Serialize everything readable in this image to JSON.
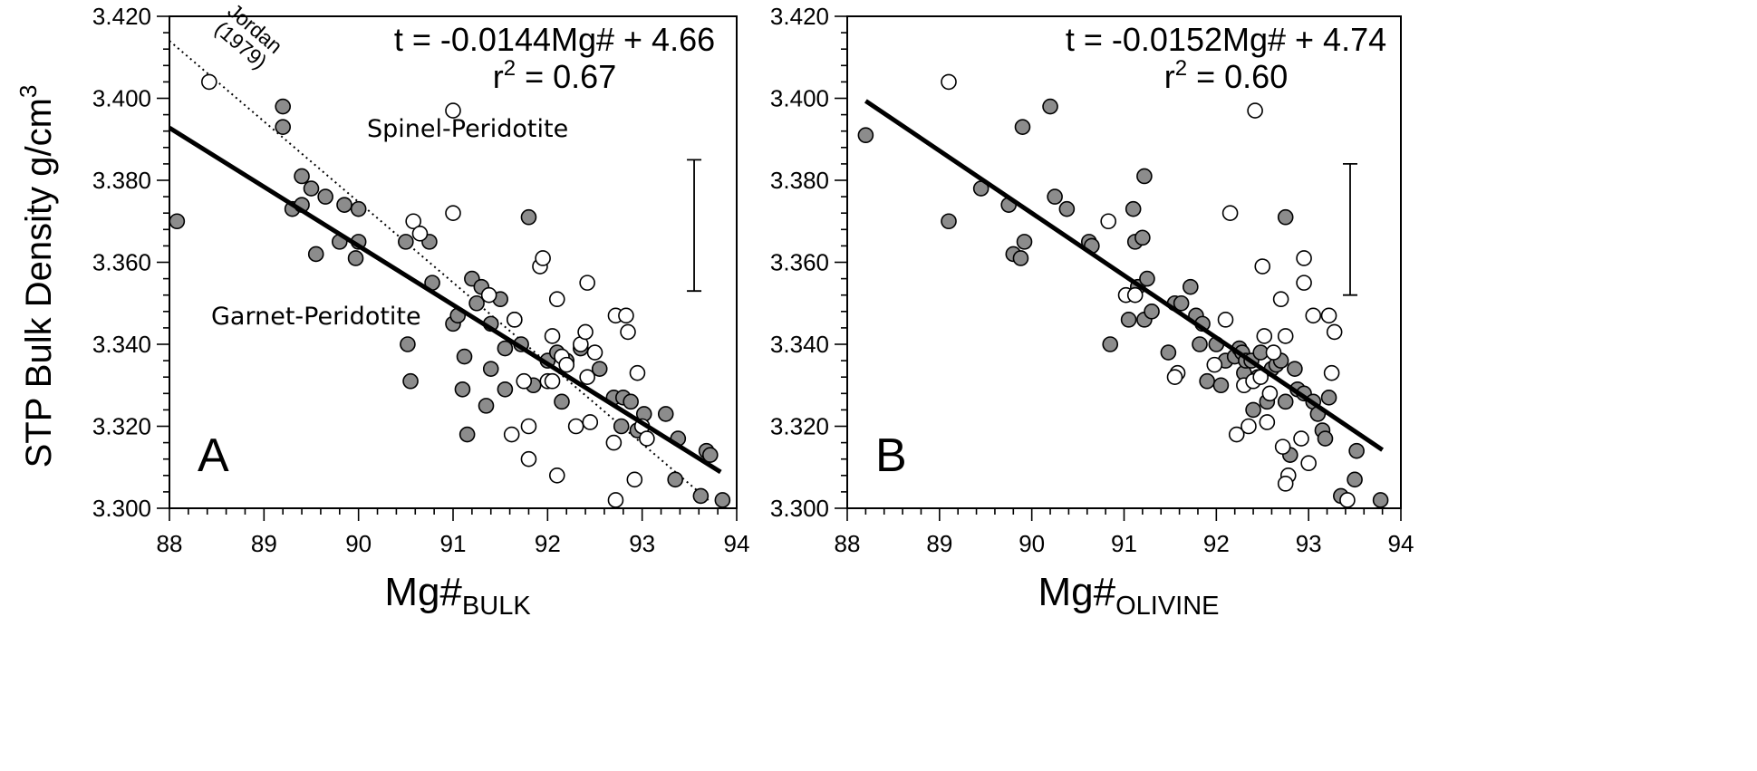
{
  "ylabel": "STP Bulk Density g/cm",
  "ylabel_sup": "3",
  "chart_data": [
    {
      "type": "scatter",
      "panel": "A",
      "xlabel": "Mg#",
      "xlabel_sub": "BULK",
      "xlim": [
        88,
        94
      ],
      "ylim": [
        3.3,
        3.42
      ],
      "x_ticks": [
        "88",
        "89",
        "90",
        "91",
        "92",
        "93",
        "94"
      ],
      "y_ticks": [
        "3.300",
        "3.320",
        "3.340",
        "3.360",
        "3.380",
        "3.400",
        "3.420"
      ],
      "equation": "t  = -0.0144Mg# + 4.66",
      "r2_prefix": "r",
      "r2_sup": "2",
      "r2_value": " = 0.67",
      "fit_line": {
        "slope": -0.0144,
        "intercept": 4.66,
        "x_range": [
          88,
          93.83
        ]
      },
      "reference_line": {
        "label_1": "Jordan",
        "label_2": "(1979)",
        "points": [
          [
            88,
            3.414
          ],
          [
            93.7,
            3.302
          ]
        ]
      },
      "annotations": [
        "Spinel-Peridotite",
        "Garnet-Peridotite"
      ],
      "error_bar": {
        "x": 93.55,
        "low": 3.353,
        "high": 3.385
      },
      "series": [
        {
          "name": "",
          "marker": "filled",
          "color": "#8c8c8c",
          "points": [
            [
              88.08,
              3.37
            ],
            [
              89.2,
              3.398
            ],
            [
              89.2,
              3.393
            ],
            [
              89.3,
              3.373
            ],
            [
              89.4,
              3.381
            ],
            [
              89.4,
              3.374
            ],
            [
              89.5,
              3.378
            ],
            [
              89.55,
              3.362
            ],
            [
              89.65,
              3.376
            ],
            [
              89.8,
              3.365
            ],
            [
              89.85,
              3.374
            ],
            [
              89.97,
              3.361
            ],
            [
              90.0,
              3.373
            ],
            [
              90.0,
              3.365
            ],
            [
              90.5,
              3.365
            ],
            [
              90.52,
              3.34
            ],
            [
              90.55,
              3.331
            ],
            [
              90.75,
              3.365
            ],
            [
              90.78,
              3.355
            ],
            [
              91.0,
              3.345
            ],
            [
              91.05,
              3.347
            ],
            [
              91.1,
              3.329
            ],
            [
              91.12,
              3.337
            ],
            [
              91.15,
              3.318
            ],
            [
              91.2,
              3.356
            ],
            [
              91.25,
              3.35
            ],
            [
              91.3,
              3.354
            ],
            [
              91.35,
              3.325
            ],
            [
              91.4,
              3.345
            ],
            [
              91.4,
              3.334
            ],
            [
              91.5,
              3.351
            ],
            [
              91.55,
              3.339
            ],
            [
              91.55,
              3.329
            ],
            [
              91.65,
              3.346
            ],
            [
              91.72,
              3.34
            ],
            [
              91.8,
              3.371
            ],
            [
              91.85,
              3.33
            ],
            [
              92.0,
              3.336
            ],
            [
              92.1,
              3.338
            ],
            [
              92.15,
              3.326
            ],
            [
              92.2,
              3.336
            ],
            [
              92.35,
              3.339
            ],
            [
              92.55,
              3.334
            ],
            [
              92.7,
              3.327
            ],
            [
              92.78,
              3.32
            ],
            [
              92.8,
              3.327
            ],
            [
              92.88,
              3.326
            ],
            [
              92.95,
              3.319
            ],
            [
              93.02,
              3.323
            ],
            [
              93.25,
              3.323
            ],
            [
              93.35,
              3.307
            ],
            [
              93.38,
              3.317
            ],
            [
              93.62,
              3.303
            ],
            [
              93.68,
              3.314
            ],
            [
              93.72,
              3.313
            ],
            [
              93.85,
              3.302
            ]
          ]
        },
        {
          "name": "",
          "marker": "open",
          "color": "#ffffff",
          "points": [
            [
              88.42,
              3.404
            ],
            [
              90.58,
              3.37
            ],
            [
              90.65,
              3.367
            ],
            [
              91.0,
              3.372
            ],
            [
              91.0,
              3.397
            ],
            [
              91.38,
              3.352
            ],
            [
              91.65,
              3.346
            ],
            [
              91.62,
              3.318
            ],
            [
              91.75,
              3.331
            ],
            [
              91.8,
              3.32
            ],
            [
              91.8,
              3.312
            ],
            [
              91.92,
              3.359
            ],
            [
              91.95,
              3.361
            ],
            [
              92.0,
              3.331
            ],
            [
              92.05,
              3.342
            ],
            [
              92.05,
              3.331
            ],
            [
              92.1,
              3.351
            ],
            [
              92.1,
              3.308
            ],
            [
              92.15,
              3.337
            ],
            [
              92.2,
              3.335
            ],
            [
              92.3,
              3.32
            ],
            [
              92.35,
              3.34
            ],
            [
              92.4,
              3.343
            ],
            [
              92.42,
              3.355
            ],
            [
              92.42,
              3.332
            ],
            [
              92.45,
              3.321
            ],
            [
              92.5,
              3.338
            ],
            [
              92.7,
              3.316
            ],
            [
              92.72,
              3.347
            ],
            [
              92.72,
              3.302
            ],
            [
              92.83,
              3.347
            ],
            [
              92.85,
              3.343
            ],
            [
              92.92,
              3.307
            ],
            [
              92.95,
              3.333
            ],
            [
              93.0,
              3.32
            ],
            [
              93.05,
              3.317
            ]
          ]
        }
      ]
    },
    {
      "type": "scatter",
      "panel": "B",
      "xlabel": "Mg#",
      "xlabel_sub": "OLIVINE",
      "xlim": [
        88,
        94
      ],
      "ylim": [
        3.3,
        3.42
      ],
      "x_ticks": [
        "88",
        "89",
        "90",
        "91",
        "92",
        "93",
        "94"
      ],
      "y_ticks": [
        "3.300",
        "3.320",
        "3.340",
        "3.360",
        "3.380",
        "3.400",
        "3.420"
      ],
      "equation": "t  = -0.0152Mg# + 4.74",
      "r2_prefix": "r",
      "r2_sup": "2",
      "r2_value": " = 0.60",
      "fit_line": {
        "slope": -0.0152,
        "intercept": 4.74,
        "x_range": [
          88.2,
          93.8
        ]
      },
      "error_bar": {
        "x": 93.45,
        "low": 3.352,
        "high": 3.384
      },
      "series": [
        {
          "name": "",
          "marker": "filled",
          "color": "#8c8c8c",
          "points": [
            [
              88.2,
              3.391
            ],
            [
              89.1,
              3.37
            ],
            [
              89.45,
              3.378
            ],
            [
              89.75,
              3.374
            ],
            [
              89.8,
              3.362
            ],
            [
              89.88,
              3.361
            ],
            [
              89.9,
              3.393
            ],
            [
              89.92,
              3.365
            ],
            [
              90.2,
              3.398
            ],
            [
              90.25,
              3.376
            ],
            [
              90.38,
              3.373
            ],
            [
              90.62,
              3.365
            ],
            [
              90.65,
              3.364
            ],
            [
              90.85,
              3.34
            ],
            [
              91.05,
              3.346
            ],
            [
              91.1,
              3.373
            ],
            [
              91.12,
              3.365
            ],
            [
              91.15,
              3.354
            ],
            [
              91.2,
              3.366
            ],
            [
              91.22,
              3.381
            ],
            [
              91.22,
              3.346
            ],
            [
              91.25,
              3.356
            ],
            [
              91.3,
              3.348
            ],
            [
              91.48,
              3.338
            ],
            [
              91.55,
              3.35
            ],
            [
              91.62,
              3.35
            ],
            [
              91.72,
              3.354
            ],
            [
              91.78,
              3.347
            ],
            [
              91.82,
              3.34
            ],
            [
              91.85,
              3.345
            ],
            [
              91.9,
              3.331
            ],
            [
              92.0,
              3.34
            ],
            [
              92.05,
              3.33
            ],
            [
              92.1,
              3.336
            ],
            [
              92.2,
              3.337
            ],
            [
              92.25,
              3.339
            ],
            [
              92.28,
              3.338
            ],
            [
              92.3,
              3.333
            ],
            [
              92.32,
              3.336
            ],
            [
              92.38,
              3.336
            ],
            [
              92.4,
              3.324
            ],
            [
              92.45,
              3.332
            ],
            [
              92.48,
              3.338
            ],
            [
              92.55,
              3.326
            ],
            [
              92.6,
              3.334
            ],
            [
              92.65,
              3.335
            ],
            [
              92.7,
              3.336
            ],
            [
              92.75,
              3.371
            ],
            [
              92.75,
              3.326
            ],
            [
              92.8,
              3.313
            ],
            [
              92.85,
              3.334
            ],
            [
              92.88,
              3.329
            ],
            [
              92.95,
              3.328
            ],
            [
              93.05,
              3.326
            ],
            [
              93.1,
              3.323
            ],
            [
              93.15,
              3.319
            ],
            [
              93.18,
              3.317
            ],
            [
              93.22,
              3.327
            ],
            [
              93.35,
              3.303
            ],
            [
              93.5,
              3.307
            ],
            [
              93.52,
              3.314
            ],
            [
              93.78,
              3.302
            ]
          ]
        },
        {
          "name": "",
          "marker": "open",
          "color": "#ffffff",
          "points": [
            [
              89.1,
              3.404
            ],
            [
              90.83,
              3.37
            ],
            [
              91.02,
              3.352
            ],
            [
              91.12,
              3.352
            ],
            [
              91.58,
              3.333
            ],
            [
              91.55,
              3.332
            ],
            [
              91.98,
              3.335
            ],
            [
              92.1,
              3.346
            ],
            [
              92.15,
              3.372
            ],
            [
              92.22,
              3.318
            ],
            [
              92.3,
              3.33
            ],
            [
              92.35,
              3.32
            ],
            [
              92.4,
              3.331
            ],
            [
              92.42,
              3.397
            ],
            [
              92.5,
              3.359
            ],
            [
              92.48,
              3.332
            ],
            [
              92.52,
              3.342
            ],
            [
              92.55,
              3.321
            ],
            [
              92.58,
              3.328
            ],
            [
              92.62,
              3.338
            ],
            [
              92.7,
              3.351
            ],
            [
              92.72,
              3.315
            ],
            [
              92.75,
              3.342
            ],
            [
              92.78,
              3.308
            ],
            [
              92.75,
              3.306
            ],
            [
              92.92,
              3.317
            ],
            [
              92.95,
              3.361
            ],
            [
              92.95,
              3.355
            ],
            [
              93.0,
              3.311
            ],
            [
              93.05,
              3.347
            ],
            [
              93.25,
              3.333
            ],
            [
              93.22,
              3.347
            ],
            [
              93.28,
              3.343
            ],
            [
              93.42,
              3.302
            ]
          ]
        }
      ]
    }
  ]
}
